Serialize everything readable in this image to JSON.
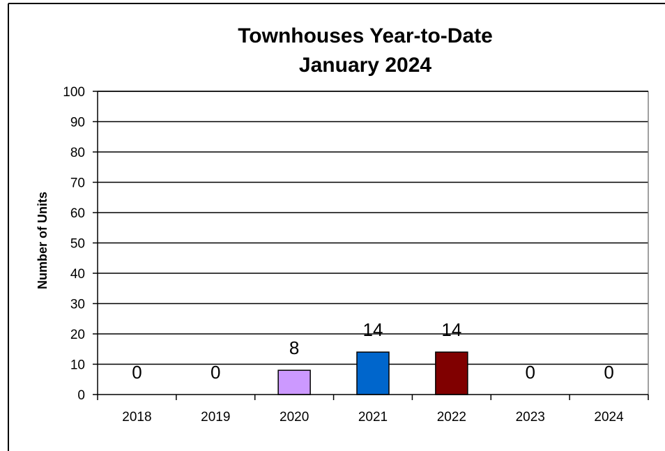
{
  "chart_data": {
    "type": "bar",
    "title": [
      "Townhouses Year-to-Date",
      "January 2024"
    ],
    "xlabel": "",
    "ylabel": "Number of Units",
    "categories": [
      "2018",
      "2019",
      "2020",
      "2021",
      "2022",
      "2023",
      "2024"
    ],
    "values": [
      0,
      0,
      8,
      14,
      14,
      0,
      0
    ],
    "data_labels": [
      "0",
      "0",
      "8",
      "14",
      "14",
      "0",
      "0"
    ],
    "bar_colors": [
      "#ffffff",
      "#ffffff",
      "#cc99ff",
      "#0066cc",
      "#800000",
      "#ffffff",
      "#ffffff"
    ],
    "ylim": [
      0,
      100
    ],
    "yticks": [
      "0",
      "10",
      "20",
      "30",
      "40",
      "50",
      "60",
      "70",
      "80",
      "90",
      "100"
    ],
    "grid": "horizontal",
    "legend": "none"
  }
}
